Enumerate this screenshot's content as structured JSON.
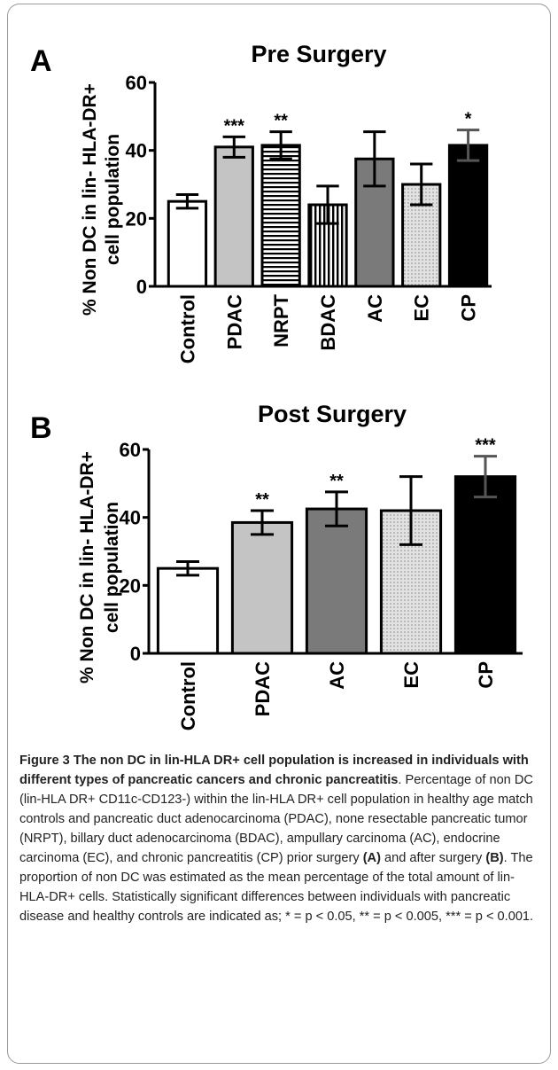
{
  "chart_data": [
    {
      "type": "bar",
      "panel": "A",
      "title": "Pre Surgery",
      "y_label": [
        "% Non DC in lin- HLA-DR+",
        "cell population"
      ],
      "categories": [
        "Control",
        "PDAC",
        "NRPT",
        "BDAC",
        "AC",
        "EC",
        "CP"
      ],
      "values": [
        25,
        41,
        41.5,
        24,
        37.5,
        30,
        41.5
      ],
      "errors": [
        2,
        3,
        4,
        5.5,
        8,
        6,
        4.5
      ],
      "annotations": [
        null,
        "***",
        "**",
        null,
        null,
        null,
        "*"
      ],
      "colors": [
        "#ffffff",
        "#c4c4c4",
        "url(#hstripes)",
        "url(#vstripes)",
        "#7a7a7a",
        "url(#dots)",
        "#000000"
      ],
      "ylim": [
        0,
        60
      ],
      "yticks": [
        0,
        20,
        40,
        60
      ]
    },
    {
      "type": "bar",
      "panel": "B",
      "title": "Post Surgery",
      "y_label": [
        "% Non DC in lin- HLA-DR+",
        "cell population"
      ],
      "categories": [
        "Control",
        "PDAC",
        "AC",
        "EC",
        "CP"
      ],
      "values": [
        25,
        38.5,
        42.5,
        42,
        52
      ],
      "errors": [
        2,
        3.5,
        5,
        10,
        6
      ],
      "annotations": [
        null,
        "**",
        "**",
        null,
        "***"
      ],
      "colors": [
        "#ffffff",
        "#c4c4c4",
        "#7a7a7a",
        "url(#dots)",
        "#000000"
      ],
      "ylim": [
        0,
        60
      ],
      "yticks": [
        0,
        20,
        40,
        60
      ]
    }
  ],
  "caption": {
    "title": "Figure 3 The non DC in lin-HLA DR+ cell population is increased in individuals with different types of pancreatic cancers and chronic pancreatitis",
    "parts": [
      ". Percentage of non DC (lin-HLA DR+ CD11c-CD123-) within the lin-HLA DR+ cell population in healthy age match controls and pancreatic duct adenocarcinoma (PDAC), none resectable pancreatic tumor (NRPT), billary duct adenocarcinoma (BDAC), ampullary carcinoma (AC), endocrine carcinoma (EC), and chronic pancreatitis (CP) prior surgery ",
      "(A)",
      " and after surgery ",
      "(B)",
      ". The proportion of non DC was estimated as the mean percentage of the total amount of lin-HLA-DR+ cells. Statistically significant differences between individuals with pancreatic disease and healthy controls are indicated as; * = p < 0.05, ** = p < 0.005, *** = p < 0.001."
    ]
  }
}
